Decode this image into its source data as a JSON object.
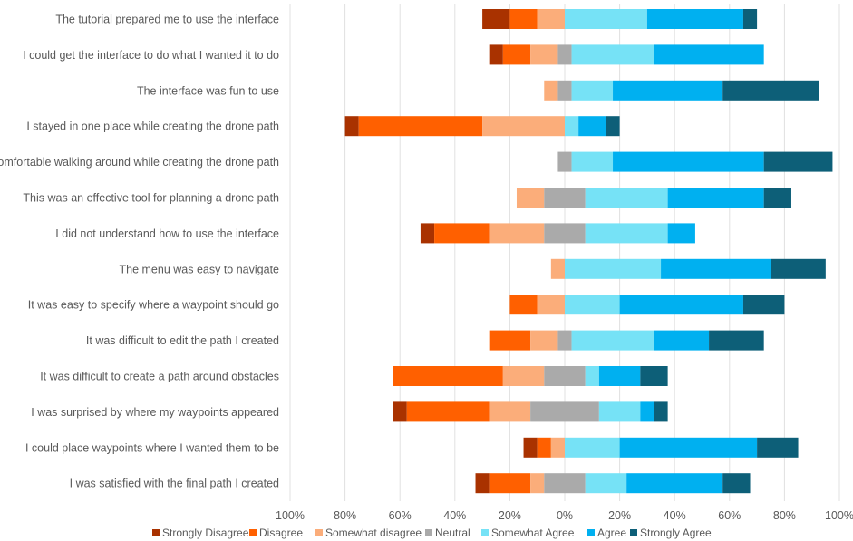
{
  "chart_data": {
    "type": "bar",
    "orientation": "horizontal",
    "stacked": "diverging",
    "title": "",
    "xlabel": "",
    "ylabel": "",
    "xlim": [
      -100,
      100
    ],
    "x_ticks": [
      -100,
      -80,
      -60,
      -40,
      -20,
      0,
      20,
      40,
      60,
      80,
      100
    ],
    "x_tick_labels": [
      "100%",
      "80%",
      "60%",
      "40%",
      "20%",
      "0%",
      "20%",
      "40%",
      "60%",
      "80%",
      "100%"
    ],
    "grid": "vertical",
    "legend_position": "bottom",
    "categories": [
      "The tutorial prepared me to use the interface",
      "I could get the interface to do what I wanted it to do",
      "The interface was fun to use",
      "I stayed in one place while creating the drone path",
      "I felt comfortable walking around while creating the drone path",
      "This was an effective tool for planning a drone path",
      "I did not understand how to use the interface",
      "The menu was easy to navigate",
      "It was easy to specify where a waypoint should go",
      "It was difficult to edit the path I created",
      "It was difficult to create a path around obstacles",
      "I was surprised by where my waypoints appeared",
      "I could place waypoints where I wanted them to be",
      "I was satisfied with the final path I created"
    ],
    "series": [
      {
        "name": "Strongly Disagree",
        "color": "#a93200",
        "values": [
          10,
          5,
          0,
          5,
          0,
          0,
          5,
          0,
          0,
          0,
          0,
          5,
          5,
          5
        ]
      },
      {
        "name": "Disagree",
        "color": "#ff6000",
        "values": [
          10,
          10,
          0,
          45,
          0,
          0,
          20,
          0,
          10,
          15,
          40,
          30,
          5,
          15
        ]
      },
      {
        "name": "Somewhat disagree",
        "color": "#fbad7a",
        "values": [
          10,
          10,
          5,
          30,
          0,
          10,
          20,
          5,
          10,
          10,
          15,
          15,
          5,
          5
        ]
      },
      {
        "name": "Neutral",
        "color": "#aaaaaa",
        "values": [
          0,
          5,
          5,
          0,
          5,
          15,
          15,
          0,
          0,
          5,
          15,
          25,
          0,
          15
        ]
      },
      {
        "name": "Somewhat Agree",
        "color": "#76e2f6",
        "values": [
          30,
          30,
          15,
          5,
          15,
          30,
          30,
          35,
          20,
          30,
          5,
          15,
          20,
          15
        ]
      },
      {
        "name": "Agree",
        "color": "#00b0f0",
        "values": [
          35,
          40,
          40,
          10,
          55,
          35,
          10,
          40,
          45,
          20,
          15,
          5,
          50,
          35
        ]
      },
      {
        "name": "Strongly Agree",
        "color": "#0d5f78",
        "values": [
          5,
          0,
          35,
          5,
          25,
          10,
          0,
          20,
          15,
          20,
          10,
          5,
          15,
          10
        ]
      }
    ]
  }
}
